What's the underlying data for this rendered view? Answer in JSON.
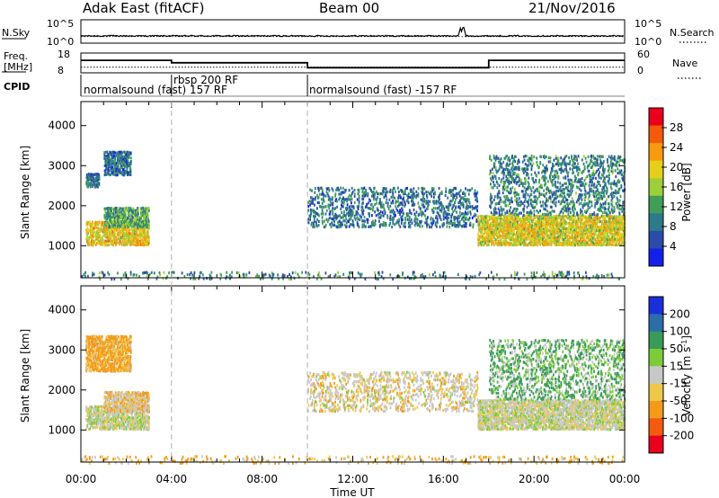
{
  "header": {
    "station": "Adak East (fitACF)",
    "beam": "Beam 00",
    "date": "21/Nov/2016"
  },
  "sky_panel": {
    "left_label": "N.Sky",
    "right_label": "N.Search",
    "left_ticks": [
      "10^5",
      "10^0"
    ],
    "right_ticks": [
      "10^5",
      "10^0"
    ]
  },
  "freq_panel": {
    "left_label_line1": "Freq.",
    "left_label_line2": "[MHz]",
    "right_label": "Nave",
    "left_ticks": [
      "18",
      "8"
    ],
    "right_ticks": [
      "60",
      "0"
    ]
  },
  "cpid_panel": {
    "label": "CPID",
    "segments": [
      {
        "start_hour": 0,
        "end_hour": 4,
        "text": "normalsound (fast) 157 RF"
      },
      {
        "start_hour": 4,
        "end_hour": 10,
        "text": "rbsp 200 RF"
      },
      {
        "start_hour": 10,
        "end_hour": 24,
        "text": "normalsound (fast) -157 RF"
      }
    ]
  },
  "power_colorbar": {
    "label": "Power [dB]",
    "ticks": [
      "28",
      "24",
      "20",
      "16",
      "12",
      "8",
      "4"
    ],
    "colors": [
      "#e8001c",
      "#f45a0c",
      "#f79a10",
      "#e6cf1a",
      "#9ccf3a",
      "#3f9e58",
      "#2d7a8a",
      "#2a4ca8",
      "#1420e8"
    ]
  },
  "velocity_colorbar": {
    "label": "Velocity [m s^-1]",
    "ticks": [
      "200",
      "100",
      "50",
      "15",
      "-15",
      "-50",
      "-100",
      "-200"
    ],
    "colors": [
      "#1a2fd8",
      "#2c6ea8",
      "#3a9a5a",
      "#7ccc3a",
      "#c8c8c8",
      "#eec84a",
      "#f49a1a",
      "#f45a10",
      "#e8001c"
    ]
  },
  "x_axis": {
    "label": "Time UT",
    "ticks": [
      "00:00",
      "04:00",
      "08:00",
      "12:00",
      "16:00",
      "20:00",
      "00:00"
    ]
  },
  "y_axis": {
    "label": "Slant Range [km]",
    "ticks": [
      "1000",
      "2000",
      "3000",
      "4000"
    ]
  },
  "chart_data": [
    {
      "type": "line",
      "title": "N.Sky / N.Search",
      "x_range_hours": [
        0,
        24
      ],
      "series": [
        {
          "name": "N.Sky",
          "note": "noise level, nearly flat",
          "x": [
            0,
            10,
            16.8,
            17.0,
            24
          ],
          "y": [
            1.6,
            1.5,
            2.4,
            1.6,
            1.7
          ]
        },
        {
          "name": "N.Search",
          "x": [
            0,
            24
          ],
          "y": [
            1.4,
            1.4
          ]
        }
      ]
    },
    {
      "type": "line",
      "title": "Freq. / Nave",
      "x_range_hours": [
        0,
        24
      ],
      "ylim_freq_mhz": [
        8,
        18
      ],
      "ylim_nave": [
        0,
        60
      ],
      "series": [
        {
          "name": "Freq.",
          "x": [
            0,
            4,
            4,
            10,
            10,
            18,
            18,
            24
          ],
          "y": [
            14.3,
            14.3,
            13.1,
            13.1,
            10.6,
            10.6,
            14.3,
            14.3
          ]
        },
        {
          "name": "Nave",
          "x": [
            0,
            24
          ],
          "y": [
            17,
            17
          ]
        }
      ]
    },
    {
      "type": "heatmap",
      "title": "Power [dB]",
      "xlabel": "Time UT",
      "ylabel": "Slant Range [km]",
      "x_range_hours": [
        0,
        24
      ],
      "ylim": [
        200,
        4600
      ],
      "regions": [
        {
          "t0": 0.2,
          "t1": 3.0,
          "r0": 1050,
          "r1": 1650,
          "power_db": 19
        },
        {
          "t0": 1.0,
          "t1": 3.0,
          "r0": 1500,
          "r1": 2000,
          "power_db": 11
        },
        {
          "t0": 0.2,
          "t1": 0.8,
          "r0": 2500,
          "r1": 2850,
          "power_db": 7
        },
        {
          "t0": 1.0,
          "t1": 2.2,
          "r0": 2800,
          "r1": 3400,
          "power_db": 6
        },
        {
          "t0": 10.0,
          "t1": 17.5,
          "r0": 1500,
          "r1": 2500,
          "power_db": 7
        },
        {
          "t0": 17.5,
          "t1": 24.0,
          "r0": 1050,
          "r1": 1800,
          "power_db": 18
        },
        {
          "t0": 18.0,
          "t1": 24.0,
          "r0": 1800,
          "r1": 3300,
          "power_db": 8
        },
        {
          "t0": 0.0,
          "t1": 24.0,
          "r0": 200,
          "r1": 400,
          "power_db": 9
        }
      ]
    },
    {
      "type": "heatmap",
      "title": "Velocity [m s^-1]",
      "xlabel": "Time UT",
      "ylabel": "Slant Range [km]",
      "x_range_hours": [
        0,
        24
      ],
      "ylim": [
        200,
        4600
      ],
      "regions": [
        {
          "t0": 0.2,
          "t1": 3.0,
          "r0": 1050,
          "r1": 1650,
          "velocity": 0
        },
        {
          "t0": 1.0,
          "t1": 3.0,
          "r0": 1500,
          "r1": 2000,
          "velocity": -20
        },
        {
          "t0": 0.2,
          "t1": 2.2,
          "r0": 2500,
          "r1": 3400,
          "velocity": -40
        },
        {
          "t0": 10.0,
          "t1": 17.5,
          "r0": 1500,
          "r1": 2500,
          "velocity": -10
        },
        {
          "t0": 17.5,
          "t1": 24.0,
          "r0": 1050,
          "r1": 1800,
          "velocity": 0
        },
        {
          "t0": 18.0,
          "t1": 24.0,
          "r0": 1800,
          "r1": 3300,
          "velocity": 30
        },
        {
          "t0": 0.0,
          "t1": 24.0,
          "r0": 200,
          "r1": 400,
          "velocity": -30
        }
      ]
    }
  ]
}
